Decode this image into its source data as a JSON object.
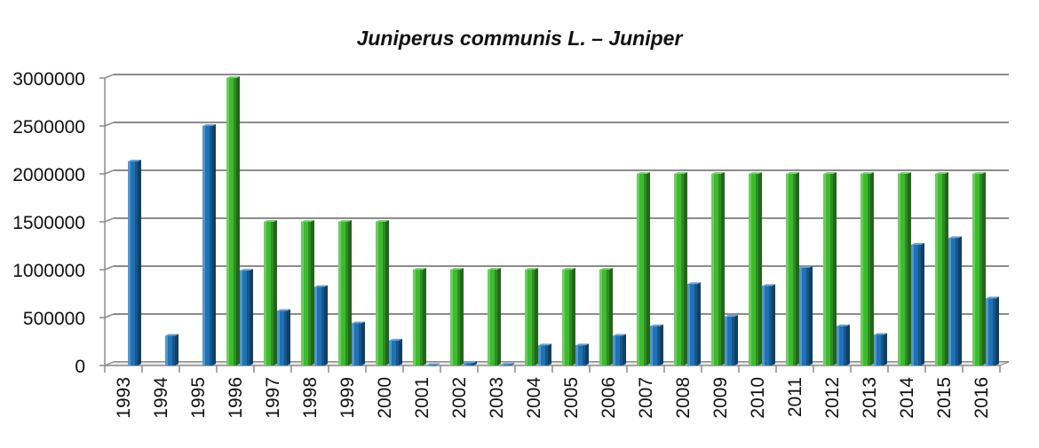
{
  "chart_data": {
    "type": "bar",
    "title": "Juniperus communis L. – Juniper",
    "xlabel": "",
    "ylabel": "",
    "ylim": [
      0,
      3000000
    ],
    "yticks": [
      0,
      500000,
      1000000,
      1500000,
      2000000,
      2500000,
      3000000
    ],
    "ytick_labels": [
      "0",
      "500000",
      "1000000",
      "1500000",
      "2000000",
      "2500000",
      "3000000"
    ],
    "grid": true,
    "categories": [
      "1993",
      "1994",
      "1995",
      "1996",
      "1997",
      "1998",
      "1999",
      "2000",
      "2001",
      "2002",
      "2003",
      "2004",
      "2005",
      "2006",
      "2007",
      "2008",
      "2009",
      "2010",
      "2011",
      "2012",
      "2013",
      "2014",
      "2015",
      "2016"
    ],
    "series": [
      {
        "color": "#3dbb2e",
        "values": [
          0,
          0,
          0,
          3000000,
          1500000,
          1500000,
          1500000,
          1500000,
          1000000,
          1000000,
          1000000,
          1000000,
          1000000,
          1000000,
          2000000,
          2000000,
          2000000,
          2000000,
          2000000,
          2000000,
          2000000,
          2000000,
          2000000,
          2000000
        ]
      },
      {
        "color": "#1e72b8",
        "values": [
          2130000,
          310000,
          2500000,
          990000,
          570000,
          820000,
          440000,
          260000,
          5000,
          25000,
          10000,
          210000,
          210000,
          310000,
          410000,
          850000,
          510000,
          830000,
          1020000,
          410000,
          320000,
          1260000,
          1330000,
          700000
        ]
      }
    ]
  }
}
